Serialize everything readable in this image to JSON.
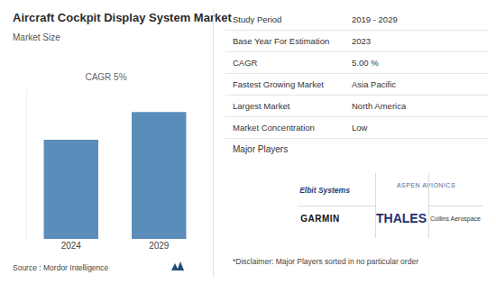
{
  "chart_data": {
    "type": "bar",
    "title": "Aircraft Cockpit Display System Market",
    "subtitle": "Market Size",
    "annotation": "CAGR 5%",
    "categories": [
      "2024",
      "2029"
    ],
    "values": [
      100,
      128
    ],
    "color": "#5b8dba",
    "ylim": [
      0,
      150
    ],
    "grid": false,
    "tick_labels": "x"
  },
  "table": {
    "rows": [
      [
        "Study Period",
        "2019 - 2029"
      ],
      [
        "Base Year For Estimation",
        "2023"
      ],
      [
        "CAGR",
        "5.00 %"
      ],
      [
        "Fastest Growing Market",
        "Asia Pacific"
      ],
      [
        "Largest Market",
        "North America"
      ],
      [
        "Market Concentration",
        "Low"
      ]
    ]
  },
  "players": {
    "title": "Major Players",
    "logos": [
      "Elbit Systems",
      "ASPEN AVIONICS",
      "GARMIN",
      "THALES",
      "Collins Aerospace"
    ]
  },
  "source": "Source : Mordor Intelligence",
  "disclaimer": "*Disclaimer: Major Players sorted in no particular order"
}
